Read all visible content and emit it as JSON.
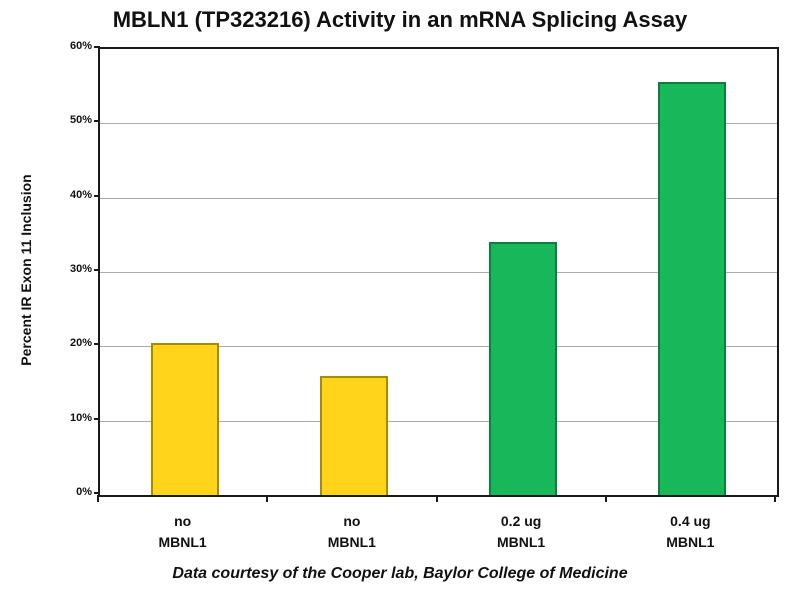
{
  "title": "MBLN1 (TP323216) Activity in an mRNA Splicing Assay",
  "caption": "Data courtesy of the Cooper lab, Baylor College of Medicine",
  "chart_data": {
    "type": "bar",
    "title": "MBLN1 (TP323216) Activity in an mRNA Splicing Assay",
    "categories": [
      "no\nMBNL1",
      "no\nMBNL1",
      "0.2 ug\nMBNL1",
      "0.4 ug\nMBNL1"
    ],
    "values": [
      20.5,
      16,
      34,
      55.5
    ],
    "xlabel": "",
    "ylabel": "Percent IR Exon 11 Inclusion",
    "ylim": [
      0,
      60
    ],
    "ytick_step": 10,
    "ytick_labels": [
      "0%",
      "10%",
      "20%",
      "30%",
      "40%",
      "50%",
      "60%"
    ],
    "grid": true,
    "legend": "none",
    "annotation": "Data courtesy of the Cooper lab, Baylor College of Medicine",
    "colors": {
      "bar_fills": [
        "#FFD41A",
        "#FFD41A",
        "#17B75A",
        "#17B75A"
      ],
      "bar_borders": [
        "#A68A00",
        "#A68A00",
        "#0C7E3E",
        "#0C7E3E"
      ],
      "gridline": "#ABABAB",
      "axis": "#1a1a1a",
      "text": "#111111",
      "background": "#ffffff"
    }
  }
}
